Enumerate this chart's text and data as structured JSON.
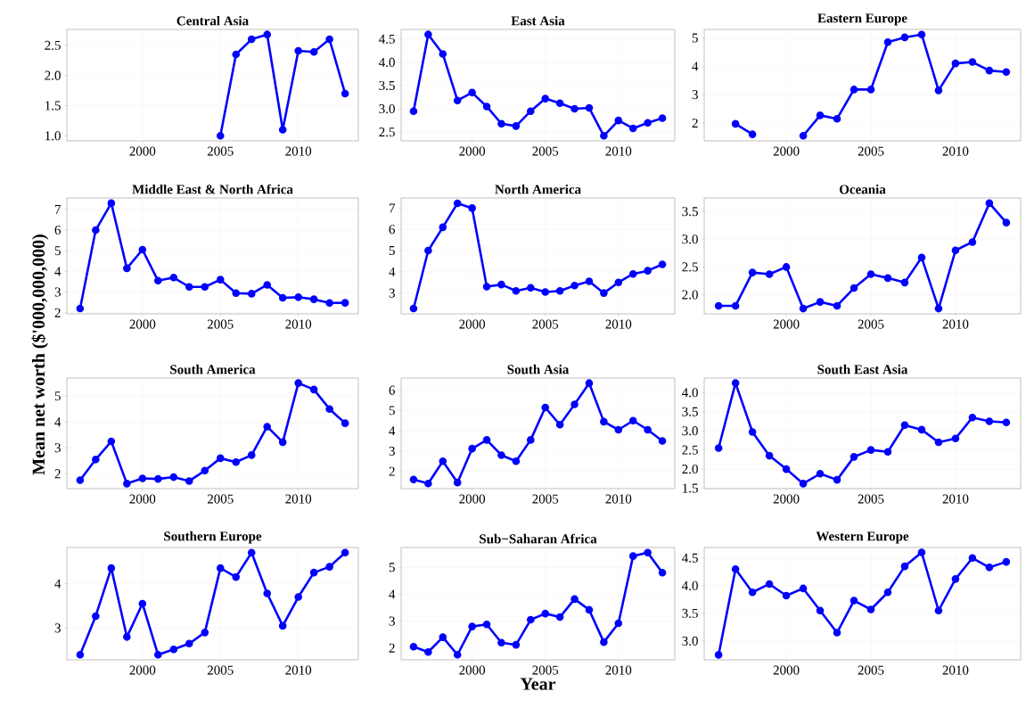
{
  "chart_data": [
    {
      "type": "line",
      "title": "Central Asia",
      "xlim": [
        1995.15,
        2013.85
      ],
      "xticks": [
        2000,
        2005,
        2010
      ],
      "ylim": [
        0.916,
        2.764
      ],
      "yticks": [
        {
          "value": 1,
          "label": "1.0"
        },
        1.5,
        {
          "value": 2,
          "label": "2.0"
        },
        2.5
      ],
      "grid": true,
      "marker": "circle",
      "line_style": "solid",
      "series": [
        {
          "color": "#0000ff",
          "x": [
            2005,
            2006,
            2007,
            2008,
            2009,
            2010,
            2011,
            2012,
            2013
          ],
          "values": [
            1.0,
            2.35,
            2.6,
            2.68,
            1.1,
            2.41,
            2.39,
            2.6,
            1.7
          ]
        }
      ]
    },
    {
      "type": "line",
      "title": "East Asia",
      "x": [
        1996,
        1997,
        1998,
        1999,
        2000,
        2001,
        2002,
        2003,
        2004,
        2005,
        2006,
        2007,
        2008,
        2009,
        2010,
        2011,
        2012,
        2013
      ],
      "xlim": [
        1995.15,
        2013.85
      ],
      "xticks": [
        2000,
        2005,
        2010
      ],
      "ylim": [
        2.311,
        4.709
      ],
      "yticks": [
        2.5,
        {
          "value": 3,
          "label": "3.0"
        },
        3.5,
        {
          "value": 4,
          "label": "4.0"
        },
        4.5
      ],
      "grid": true,
      "marker": "circle",
      "line_style": "solid",
      "series": [
        {
          "color": "#0000ff",
          "values": [
            2.95,
            4.6,
            4.18,
            3.18,
            3.35,
            3.05,
            2.68,
            2.63,
            2.95,
            3.22,
            3.12,
            3.0,
            3.02,
            2.42,
            2.75,
            2.58,
            2.7,
            2.8
          ]
        }
      ]
    },
    {
      "type": "line",
      "title": "Eastern Europe",
      "xlim": [
        1995.15,
        2013.85
      ],
      "xticks": [
        2000,
        2005,
        2010
      ],
      "ylim": [
        1.37,
        5.3
      ],
      "yticks": [
        2,
        3,
        4,
        5
      ],
      "grid": true,
      "marker": "circle",
      "line_style": "solid",
      "series": [
        {
          "color": "#0000ff",
          "x": [
            1997,
            1998,
            1999,
            2000,
            2001,
            2002,
            2003,
            2004,
            2005,
            2006,
            2007,
            2008,
            2009,
            2010,
            2011,
            2012,
            2013
          ],
          "values": [
            1.97,
            1.6,
            null,
            null,
            1.55,
            2.27,
            2.15,
            3.18,
            3.18,
            4.85,
            5.02,
            5.12,
            3.15,
            4.1,
            4.15,
            3.85,
            3.8
          ]
        }
      ]
    },
    {
      "type": "line",
      "title": "Middle East & North Africa",
      "ylabel": "Mean net worth ($'000,000,000)",
      "x": [
        1996,
        1997,
        1998,
        1999,
        2000,
        2001,
        2002,
        2003,
        2004,
        2005,
        2006,
        2007,
        2008,
        2009,
        2010,
        2011,
        2012,
        2013
      ],
      "xlim": [
        1995.15,
        2013.85
      ],
      "xticks": [
        2000,
        2005,
        2010
      ],
      "ylim": [
        1.945,
        7.555
      ],
      "yticks": [
        2,
        3,
        4,
        5,
        6,
        7
      ],
      "grid": true,
      "marker": "circle",
      "line_style": "solid",
      "series": [
        {
          "color": "#0000ff",
          "values": [
            2.2,
            6.0,
            7.3,
            4.15,
            5.05,
            3.55,
            3.7,
            3.25,
            3.25,
            3.6,
            2.95,
            2.92,
            3.35,
            2.72,
            2.75,
            2.65,
            2.47,
            2.48
          ]
        }
      ]
    },
    {
      "type": "line",
      "title": "North America",
      "x": [
        1996,
        1997,
        1998,
        1999,
        2000,
        2001,
        2002,
        2003,
        2004,
        2005,
        2006,
        2007,
        2008,
        2009,
        2010,
        2011,
        2012,
        2013
      ],
      "xlim": [
        1995.15,
        2013.85
      ],
      "xticks": [
        2000,
        2005,
        2010
      ],
      "ylim": [
        2.02,
        7.48
      ],
      "yticks": [
        3,
        4,
        5,
        6,
        7
      ],
      "grid": true,
      "marker": "circle",
      "line_style": "solid",
      "series": [
        {
          "color": "#0000ff",
          "values": [
            2.27,
            5.0,
            6.1,
            7.23,
            7.0,
            3.3,
            3.4,
            3.1,
            3.25,
            3.05,
            3.1,
            3.35,
            3.55,
            3.0,
            3.5,
            3.9,
            4.05,
            4.35
          ]
        }
      ]
    },
    {
      "type": "line",
      "title": "Oceania",
      "x": [
        1996,
        1997,
        1998,
        1999,
        2000,
        2001,
        2002,
        2003,
        2004,
        2005,
        2006,
        2007,
        2008,
        2009,
        2010,
        2011,
        2012,
        2013
      ],
      "xlim": [
        1995.15,
        2013.85
      ],
      "xticks": [
        2000,
        2005,
        2010
      ],
      "ylim": [
        1.655,
        3.745
      ],
      "yticks": [
        {
          "value": 2,
          "label": "2.0"
        },
        2.5,
        {
          "value": 3,
          "label": "3.0"
        },
        3.5
      ],
      "grid": true,
      "marker": "circle",
      "line_style": "solid",
      "series": [
        {
          "color": "#0000ff",
          "values": [
            1.8,
            1.8,
            2.4,
            2.37,
            2.5,
            1.75,
            1.87,
            1.8,
            2.12,
            2.37,
            2.3,
            2.22,
            2.67,
            1.75,
            2.8,
            2.95,
            3.65,
            3.3
          ]
        }
      ]
    },
    {
      "type": "line",
      "title": "South America",
      "x": [
        1996,
        1997,
        1998,
        1999,
        2000,
        2001,
        2002,
        2003,
        2004,
        2005,
        2006,
        2007,
        2008,
        2009,
        2010,
        2011,
        2012,
        2013
      ],
      "xlim": [
        1995.15,
        2013.85
      ],
      "xticks": [
        2000,
        2005,
        2010
      ],
      "ylim": [
        1.426,
        5.694
      ],
      "yticks": [
        2,
        3,
        4,
        5
      ],
      "grid": true,
      "marker": "circle",
      "line_style": "solid",
      "series": [
        {
          "color": "#0000ff",
          "values": [
            1.75,
            2.55,
            3.25,
            1.62,
            1.82,
            1.8,
            1.87,
            1.72,
            2.12,
            2.6,
            2.45,
            2.72,
            3.82,
            3.22,
            5.5,
            5.25,
            4.5,
            3.95
          ]
        }
      ]
    },
    {
      "type": "line",
      "title": "South Asia",
      "x": [
        1996,
        1997,
        1998,
        1999,
        2000,
        2001,
        2002,
        2003,
        2004,
        2005,
        2006,
        2007,
        2008,
        2009,
        2010,
        2011,
        2012,
        2013
      ],
      "xlim": [
        1995.15,
        2013.85
      ],
      "xticks": [
        2000,
        2005,
        2010
      ],
      "ylim": [
        1.15,
        6.6
      ],
      "yticks": [
        2,
        3,
        4,
        5,
        6
      ],
      "grid": true,
      "marker": "circle",
      "line_style": "solid",
      "series": [
        {
          "color": "#0000ff",
          "values": [
            1.6,
            1.4,
            2.5,
            1.45,
            3.12,
            3.55,
            2.8,
            2.5,
            3.55,
            5.15,
            4.3,
            5.3,
            6.35,
            4.45,
            4.05,
            4.5,
            4.05,
            3.5
          ]
        }
      ]
    },
    {
      "type": "line",
      "title": "South East Asia",
      "x": [
        1996,
        1997,
        1998,
        1999,
        2000,
        2001,
        2002,
        2003,
        2004,
        2005,
        2006,
        2007,
        2008,
        2009,
        2010,
        2011,
        2012,
        2013
      ],
      "xlim": [
        1995.15,
        2013.85
      ],
      "xticks": [
        2000,
        2005,
        2010
      ],
      "ylim": [
        1.49,
        4.38
      ],
      "yticks": [
        1.5,
        {
          "value": 2,
          "label": "2.0"
        },
        2.5,
        {
          "value": 3,
          "label": "3.0"
        },
        3.5,
        {
          "value": 4,
          "label": "4.0"
        }
      ],
      "grid": true,
      "marker": "circle",
      "line_style": "solid",
      "series": [
        {
          "color": "#0000ff",
          "values": [
            2.55,
            4.25,
            2.97,
            2.35,
            2.0,
            1.62,
            1.88,
            1.72,
            2.32,
            2.5,
            2.45,
            3.15,
            3.03,
            2.7,
            2.8,
            3.35,
            3.25,
            3.22
          ]
        }
      ]
    },
    {
      "type": "line",
      "title": "Southern Europe",
      "x": [
        1996,
        1997,
        1998,
        1999,
        2000,
        2001,
        2002,
        2003,
        2004,
        2005,
        2006,
        2007,
        2008,
        2009,
        2010,
        2011,
        2012,
        2013
      ],
      "xlim": [
        1995.15,
        2013.85
      ],
      "xticks": [
        2000,
        2005,
        2010
      ],
      "ylim": [
        2.285,
        4.815
      ],
      "yticks": [
        3,
        4
      ],
      "grid": true,
      "marker": "circle",
      "line_style": "solid",
      "series": [
        {
          "color": "#0000ff",
          "values": [
            2.4,
            3.27,
            4.35,
            2.8,
            3.55,
            2.4,
            2.52,
            2.65,
            2.9,
            4.35,
            4.15,
            4.7,
            3.78,
            3.05,
            3.7,
            4.25,
            4.38,
            4.7
          ]
        }
      ]
    },
    {
      "type": "line",
      "title": "Sub−Saharan Africa",
      "xlabel": "Year",
      "x": [
        1996,
        1997,
        1998,
        1999,
        2000,
        2001,
        2002,
        2003,
        2004,
        2005,
        2006,
        2007,
        2008,
        2009,
        2010,
        2011,
        2012,
        2013
      ],
      "xlim": [
        1995.15,
        2013.85
      ],
      "xticks": [
        2000,
        2005,
        2010
      ],
      "ylim": [
        1.56,
        5.74
      ],
      "yticks": [
        2,
        3,
        4,
        5
      ],
      "grid": true,
      "marker": "circle",
      "line_style": "solid",
      "series": [
        {
          "color": "#0000ff",
          "values": [
            2.05,
            1.85,
            2.4,
            1.75,
            2.8,
            2.88,
            2.2,
            2.12,
            3.05,
            3.28,
            3.15,
            3.82,
            3.42,
            2.22,
            2.92,
            5.42,
            5.55,
            4.8
          ]
        }
      ]
    },
    {
      "type": "line",
      "title": "Western Europe",
      "x": [
        1996,
        1997,
        1998,
        1999,
        2000,
        2001,
        2002,
        2003,
        2004,
        2005,
        2006,
        2007,
        2008,
        2009,
        2010,
        2011,
        2012,
        2013
      ],
      "xlim": [
        1995.15,
        2013.85
      ],
      "xticks": [
        2000,
        2005,
        2010
      ],
      "ylim": [
        2.66,
        4.69
      ],
      "yticks": [
        {
          "value": 3,
          "label": "3.0"
        },
        3.5,
        {
          "value": 4,
          "label": "4.0"
        },
        4.5
      ],
      "grid": true,
      "marker": "circle",
      "line_style": "solid",
      "series": [
        {
          "color": "#0000ff",
          "values": [
            2.75,
            4.3,
            3.88,
            4.03,
            3.82,
            3.95,
            3.55,
            3.15,
            3.73,
            3.57,
            3.88,
            4.35,
            4.6,
            3.55,
            4.12,
            4.5,
            4.33,
            4.43
          ]
        }
      ]
    }
  ]
}
